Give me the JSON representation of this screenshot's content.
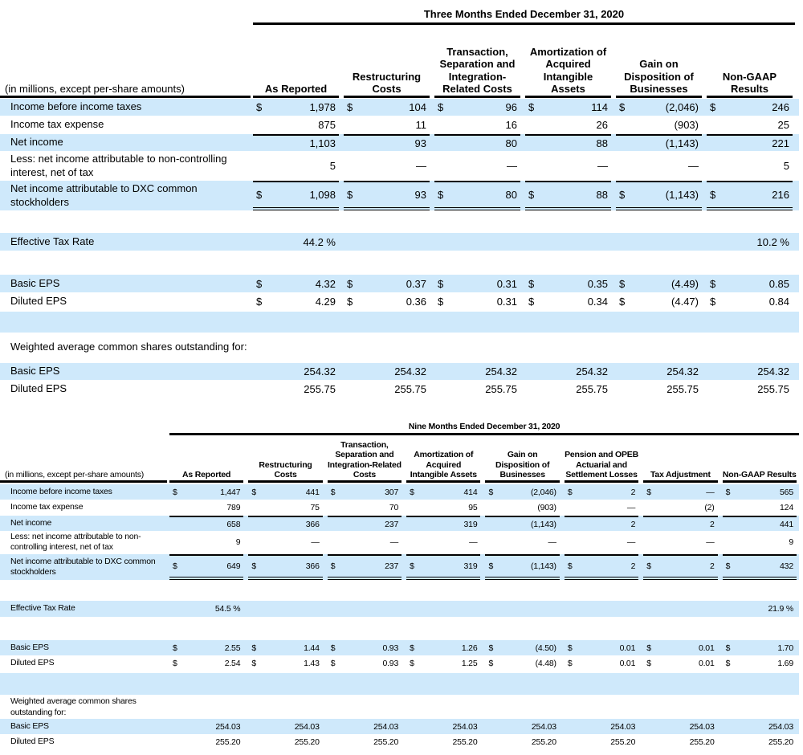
{
  "table1": {
    "period": "Three Months Ended December 31, 2020",
    "stub": "(in millions, except per-share amounts)",
    "columns": [
      "As Reported",
      "Restructuring Costs",
      "Transaction, Separation and Integration-Related Costs",
      "Amortization of Acquired Intangible Assets",
      "Gain on Disposition of Businesses",
      "Non-GAAP Results"
    ],
    "rows": [
      {
        "label": "Income before income taxes",
        "cells": [
          [
            "$",
            "1,978"
          ],
          [
            "$",
            "104"
          ],
          [
            "$",
            "96"
          ],
          [
            "$",
            "114"
          ],
          [
            "$",
            "(2,046)"
          ],
          [
            "$",
            "246"
          ]
        ]
      },
      {
        "label": "Income tax expense",
        "cells": [
          [
            "",
            "875"
          ],
          [
            "",
            "11"
          ],
          [
            "",
            "16"
          ],
          [
            "",
            "26"
          ],
          [
            "",
            "(903)"
          ],
          [
            "",
            "25"
          ]
        ]
      },
      {
        "label": "Net income",
        "cells": [
          [
            "",
            "1,103"
          ],
          [
            "",
            "93"
          ],
          [
            "",
            "80"
          ],
          [
            "",
            "88"
          ],
          [
            "",
            "(1,143)"
          ],
          [
            "",
            "221"
          ]
        ]
      },
      {
        "label": "Less: net income attributable to non-controlling interest, net of tax",
        "cells": [
          [
            "",
            "5"
          ],
          [
            "",
            "—"
          ],
          [
            "",
            "—"
          ],
          [
            "",
            "—"
          ],
          [
            "",
            "—"
          ],
          [
            "",
            "5"
          ]
        ]
      },
      {
        "label": "Net income attributable to DXC common stockholders",
        "cells": [
          [
            "$",
            "1,098"
          ],
          [
            "$",
            "93"
          ],
          [
            "$",
            "80"
          ],
          [
            "$",
            "88"
          ],
          [
            "$",
            "(1,143)"
          ],
          [
            "$",
            "216"
          ]
        ]
      },
      {
        "label": "Effective Tax Rate",
        "cells": [
          [
            "",
            "44.2 %"
          ],
          [
            "",
            ""
          ],
          [
            "",
            ""
          ],
          [
            "",
            ""
          ],
          [
            "",
            ""
          ],
          [
            "",
            "10.2 %"
          ]
        ]
      },
      {
        "label": "Basic EPS",
        "cells": [
          [
            "$",
            "4.32"
          ],
          [
            "$",
            "0.37"
          ],
          [
            "$",
            "0.31"
          ],
          [
            "$",
            "0.35"
          ],
          [
            "$",
            "(4.49)"
          ],
          [
            "$",
            "0.85"
          ]
        ]
      },
      {
        "label": "Diluted EPS",
        "cells": [
          [
            "$",
            "4.29"
          ],
          [
            "$",
            "0.36"
          ],
          [
            "$",
            "0.31"
          ],
          [
            "$",
            "0.34"
          ],
          [
            "$",
            "(4.47)"
          ],
          [
            "$",
            "0.84"
          ]
        ]
      },
      {
        "label": "",
        "cells": []
      },
      {
        "label": "Weighted average common shares outstanding for:",
        "cells": []
      },
      {
        "label": "Basic EPS",
        "cells": [
          [
            "",
            "254.32"
          ],
          [
            "",
            "254.32"
          ],
          [
            "",
            "254.32"
          ],
          [
            "",
            "254.32"
          ],
          [
            "",
            "254.32"
          ],
          [
            "",
            "254.32"
          ]
        ]
      },
      {
        "label": "Diluted EPS",
        "cells": [
          [
            "",
            "255.75"
          ],
          [
            "",
            "255.75"
          ],
          [
            "",
            "255.75"
          ],
          [
            "",
            "255.75"
          ],
          [
            "",
            "255.75"
          ],
          [
            "",
            "255.75"
          ]
        ]
      }
    ]
  },
  "table2": {
    "period": "Nine Months Ended December 31, 2020",
    "stub": "(in millions, except per-share amounts)",
    "columns": [
      "As Reported",
      "Restructuring Costs",
      "Transaction, Separation and Integration-Related Costs",
      "Amortization of Acquired Intangible Assets",
      "Gain on Disposition of Businesses",
      "Pension and OPEB Actuarial and Settlement Losses",
      "Tax Adjustment",
      "Non-GAAP Results"
    ],
    "rows": [
      {
        "label": "Income before income taxes",
        "cells": [
          [
            "$",
            "1,447"
          ],
          [
            "$",
            "441"
          ],
          [
            "$",
            "307"
          ],
          [
            "$",
            "414"
          ],
          [
            "$",
            "(2,046)"
          ],
          [
            "$",
            "2"
          ],
          [
            "$",
            "—"
          ],
          [
            "$",
            "565"
          ]
        ]
      },
      {
        "label": "Income tax expense",
        "cells": [
          [
            "",
            "789"
          ],
          [
            "",
            "75"
          ],
          [
            "",
            "70"
          ],
          [
            "",
            "95"
          ],
          [
            "",
            "(903)"
          ],
          [
            "",
            "—"
          ],
          [
            "",
            "(2)"
          ],
          [
            "",
            "124"
          ]
        ]
      },
      {
        "label": "Net income",
        "cells": [
          [
            "",
            "658"
          ],
          [
            "",
            "366"
          ],
          [
            "",
            "237"
          ],
          [
            "",
            "319"
          ],
          [
            "",
            "(1,143)"
          ],
          [
            "",
            "2"
          ],
          [
            "",
            "2"
          ],
          [
            "",
            "441"
          ]
        ]
      },
      {
        "label": "Less: net income attributable to non-controlling interest, net of tax",
        "cells": [
          [
            "",
            "9"
          ],
          [
            "",
            "—"
          ],
          [
            "",
            "—"
          ],
          [
            "",
            "—"
          ],
          [
            "",
            "—"
          ],
          [
            "",
            "—"
          ],
          [
            "",
            "—"
          ],
          [
            "",
            "9"
          ]
        ]
      },
      {
        "label": "Net income attributable to DXC common stockholders",
        "cells": [
          [
            "$",
            "649"
          ],
          [
            "$",
            "366"
          ],
          [
            "$",
            "237"
          ],
          [
            "$",
            "319"
          ],
          [
            "$",
            "(1,143)"
          ],
          [
            "$",
            "2"
          ],
          [
            "$",
            "2"
          ],
          [
            "$",
            "432"
          ]
        ]
      },
      {
        "label": "Effective Tax Rate",
        "cells": [
          [
            "",
            "54.5 %"
          ],
          [
            "",
            ""
          ],
          [
            "",
            ""
          ],
          [
            "",
            ""
          ],
          [
            "",
            ""
          ],
          [
            "",
            ""
          ],
          [
            "",
            ""
          ],
          [
            "",
            "21.9 %"
          ]
        ]
      },
      {
        "label": "Basic EPS",
        "cells": [
          [
            "$",
            "2.55"
          ],
          [
            "$",
            "1.44"
          ],
          [
            "$",
            "0.93"
          ],
          [
            "$",
            "1.26"
          ],
          [
            "$",
            "(4.50)"
          ],
          [
            "$",
            "0.01"
          ],
          [
            "$",
            "0.01"
          ],
          [
            "$",
            "1.70"
          ]
        ]
      },
      {
        "label": "Diluted EPS",
        "cells": [
          [
            "$",
            "2.54"
          ],
          [
            "$",
            "1.43"
          ],
          [
            "$",
            "0.93"
          ],
          [
            "$",
            "1.25"
          ],
          [
            "$",
            "(4.48)"
          ],
          [
            "$",
            "0.01"
          ],
          [
            "$",
            "0.01"
          ],
          [
            "$",
            "1.69"
          ]
        ]
      },
      {
        "label": "",
        "cells": []
      },
      {
        "label": "Weighted average common shares outstanding for:",
        "cells": []
      },
      {
        "label": "Basic EPS",
        "cells": [
          [
            "",
            "254.03"
          ],
          [
            "",
            "254.03"
          ],
          [
            "",
            "254.03"
          ],
          [
            "",
            "254.03"
          ],
          [
            "",
            "254.03"
          ],
          [
            "",
            "254.03"
          ],
          [
            "",
            "254.03"
          ],
          [
            "",
            "254.03"
          ]
        ]
      },
      {
        "label": "Diluted EPS",
        "cells": [
          [
            "",
            "255.20"
          ],
          [
            "",
            "255.20"
          ],
          [
            "",
            "255.20"
          ],
          [
            "",
            "255.20"
          ],
          [
            "",
            "255.20"
          ],
          [
            "",
            "255.20"
          ],
          [
            "",
            "255.20"
          ],
          [
            "",
            "255.20"
          ]
        ]
      }
    ]
  }
}
